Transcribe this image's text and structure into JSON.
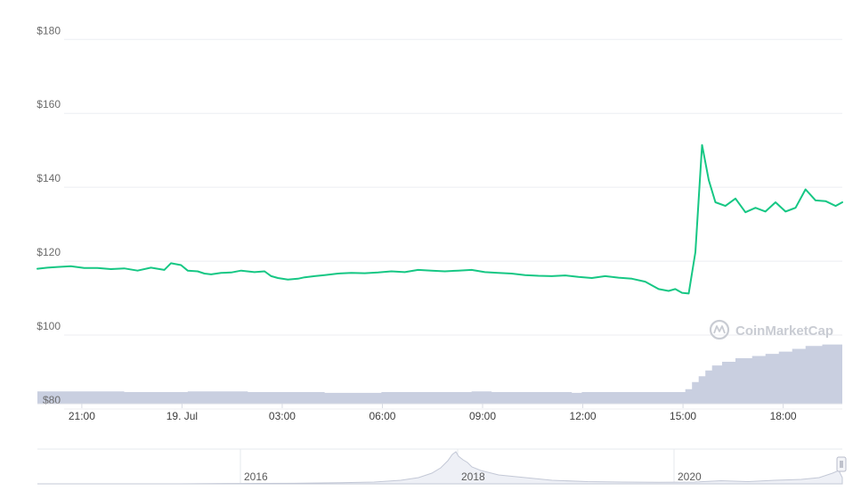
{
  "watermark": "CoinMarketCap",
  "chart_data": {
    "type": "line",
    "title": "",
    "xlabel": "",
    "ylabel": "",
    "x_tick_labels": [
      "21:00",
      "19. Jul",
      "03:00",
      "06:00",
      "09:00",
      "12:00",
      "15:00",
      "18:00"
    ],
    "y_tick_labels": [
      "$80",
      "$100",
      "$120",
      "$140",
      "$160",
      "$180"
    ],
    "y_ticks": [
      80,
      100,
      120,
      140,
      160,
      180
    ],
    "ylim": [
      80,
      182
    ],
    "x_unit": "hours (from 19:40, 18 Jul)",
    "xlim": [
      0,
      24.1
    ],
    "x_ticks_hours": [
      1.33,
      4.33,
      7.33,
      10.33,
      13.33,
      16.33,
      19.33,
      22.33
    ],
    "grid": true,
    "legend": "none",
    "line_color": "#16c784",
    "series": [
      {
        "values_x": [
          0,
          0.3,
          0.6,
          1.0,
          1.4,
          1.8,
          2.2,
          2.6,
          3.0,
          3.4,
          3.8,
          4.0,
          4.3,
          4.5,
          4.8,
          5.0,
          5.2,
          5.5,
          5.8,
          6.1,
          6.5,
          6.8,
          7.0,
          7.2,
          7.5,
          7.8,
          8.0,
          8.3,
          8.6,
          9.0,
          9.4,
          9.8,
          10.2,
          10.6,
          11.0,
          11.4,
          11.8,
          12.2,
          12.6,
          13.0,
          13.4,
          13.8,
          14.2,
          14.6,
          15.0,
          15.4,
          15.8,
          16.2,
          16.6,
          17.0,
          17.4,
          17.8,
          18.2,
          18.6,
          18.9,
          19.1,
          19.3,
          19.5,
          19.7,
          19.9,
          20.1,
          20.3,
          20.6,
          20.9,
          21.2,
          21.5,
          21.8,
          22.1,
          22.4,
          22.7,
          23.0,
          23.3,
          23.6,
          23.9,
          24.1
        ],
        "values": [
          116.5,
          116.8,
          117.0,
          117.2,
          116.7,
          116.7,
          116.4,
          116.6,
          116.0,
          116.8,
          116.2,
          118.0,
          117.5,
          116.0,
          115.8,
          115.2,
          115.0,
          115.4,
          115.5,
          116.0,
          115.6,
          115.8,
          114.5,
          114.0,
          113.6,
          113.8,
          114.2,
          114.5,
          114.8,
          115.2,
          115.4,
          115.3,
          115.5,
          115.8,
          115.6,
          116.2,
          116.0,
          115.8,
          116.0,
          116.2,
          115.6,
          115.4,
          115.2,
          114.8,
          114.6,
          114.5,
          114.7,
          114.3,
          114.0,
          114.5,
          114.1,
          113.8,
          113.0,
          111.0,
          110.5,
          111.0,
          110.0,
          109.8,
          121.0,
          150.0,
          140.5,
          134.5,
          133.5,
          135.5,
          131.8,
          133.0,
          132.0,
          134.5,
          132.0,
          133.0,
          138.0,
          135.0,
          134.8,
          133.5,
          134.5
        ]
      }
    ],
    "volume": {
      "color": "#c9cfe0",
      "values_x": [
        0,
        2.3,
        2.6,
        4.3,
        4.5,
        6.0,
        6.3,
        8.3,
        8.6,
        10.0,
        10.3,
        12.8,
        13.0,
        13.3,
        13.6,
        16.0,
        16.3,
        19.2,
        19.4,
        19.6,
        19.8,
        20.0,
        20.2,
        20.5,
        20.9,
        21.4,
        21.8,
        22.2,
        22.6,
        23.0,
        23.5,
        24.1
      ],
      "values": [
        17,
        17,
        16,
        16,
        17,
        17,
        16,
        16,
        15,
        15,
        16,
        16,
        17,
        17,
        16,
        15,
        16,
        16,
        20,
        30,
        38,
        46,
        53,
        58,
        63,
        66,
        69,
        72,
        76,
        80,
        82,
        83
      ],
      "ylim": [
        0,
        100
      ]
    },
    "navigator": {
      "x_tick_labels": [
        "2016",
        "2018",
        "2020"
      ]
    }
  }
}
